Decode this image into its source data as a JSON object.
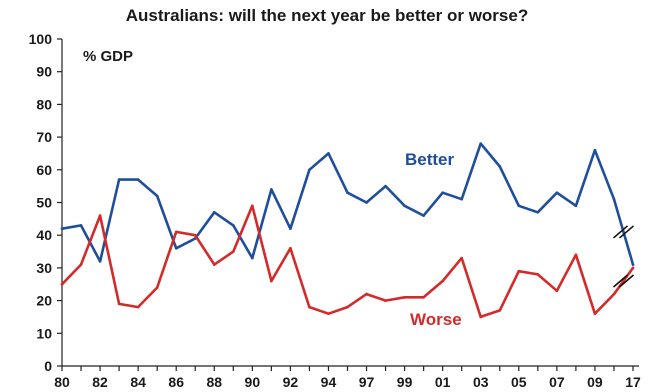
{
  "chart_data": {
    "type": "line",
    "title": "Australians: will the next year be better or worse?",
    "unit_label": "% GDP",
    "ylim": [
      0,
      100
    ],
    "y_ticks": [
      0,
      10,
      20,
      30,
      40,
      50,
      60,
      70,
      80,
      90,
      100
    ],
    "x_tick_labels": [
      "80",
      "82",
      "84",
      "86",
      "88",
      "90",
      "92",
      "94",
      "97",
      "99",
      "01",
      "03",
      "05",
      "07",
      "09",
      "17"
    ],
    "x": [
      1980,
      1981,
      1982,
      1983,
      1984,
      1985,
      1986,
      1987,
      1988,
      1989,
      1990,
      1991,
      1992,
      1993,
      1994,
      1995,
      1996,
      1997,
      1998,
      1999,
      2000,
      2001,
      2002,
      2003,
      2004,
      2005,
      2006,
      2007,
      2008,
      2009,
      2017
    ],
    "x_axis_break": "between 09 and 17",
    "series": [
      {
        "name": "Better",
        "color": "#1f4e9c",
        "values": [
          42,
          43,
          32,
          57,
          57,
          52,
          36,
          39,
          47,
          43,
          33,
          54,
          42,
          60,
          65,
          53,
          50,
          55,
          49,
          46,
          53,
          51,
          68,
          61,
          49,
          47,
          53,
          49,
          66,
          51,
          31
        ]
      },
      {
        "name": "Worse",
        "color": "#d42a2a",
        "values": [
          25,
          31,
          46,
          19,
          18,
          24,
          41,
          40,
          31,
          35,
          49,
          26,
          36,
          18,
          16,
          18,
          22,
          20,
          21,
          21,
          26,
          33,
          15,
          17,
          29,
          28,
          23,
          34,
          16,
          22,
          30
        ]
      }
    ],
    "grid": false,
    "legend": "inline labels"
  }
}
